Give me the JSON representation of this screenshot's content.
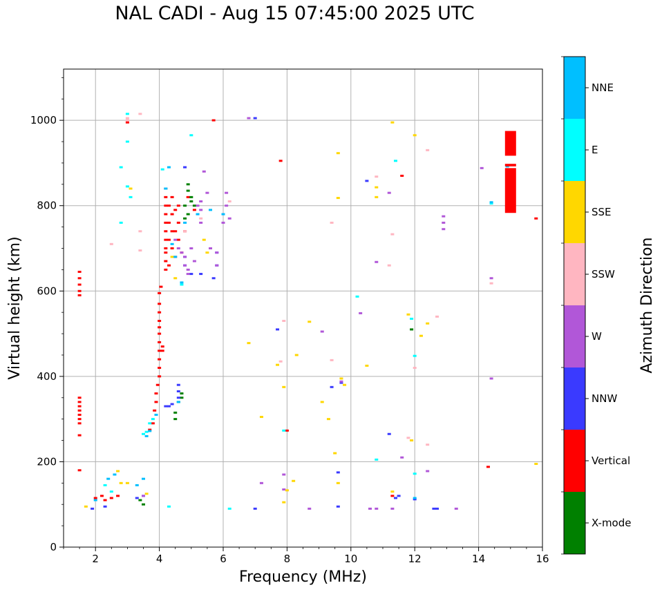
{
  "chart_data": {
    "type": "scatter",
    "title": "NAL CADI - Aug 15 07:45:00 2025 UTC",
    "xlabel": "Frequency (MHz)",
    "ylabel": "Virtual height (km)",
    "xlim": [
      1,
      16
    ],
    "ylim": [
      0,
      1120
    ],
    "xticks": [
      2,
      4,
      6,
      8,
      10,
      12,
      14,
      16
    ],
    "yticks": [
      0,
      200,
      400,
      600,
      800,
      1000
    ],
    "grid": true,
    "colorbar": {
      "label": "Azimuth Direction",
      "categories": [
        {
          "name": "X-mode",
          "color": "#008000"
        },
        {
          "name": "Vertical",
          "color": "#ff0000"
        },
        {
          "name": "NNW",
          "color": "#3a3aff"
        },
        {
          "name": "W",
          "color": "#b157d8"
        },
        {
          "name": "SSW",
          "color": "#ffb6c1"
        },
        {
          "name": "SSE",
          "color": "#ffd700"
        },
        {
          "name": "E",
          "color": "#00ffff"
        },
        {
          "name": "NNE",
          "color": "#00bfff"
        }
      ]
    },
    "series": [
      {
        "name": "Vertical",
        "points": [
          [
            1.5,
            645
          ],
          [
            1.5,
            630
          ],
          [
            1.5,
            615
          ],
          [
            1.5,
            600
          ],
          [
            1.5,
            590
          ],
          [
            1.5,
            350
          ],
          [
            1.5,
            340
          ],
          [
            1.5,
            330
          ],
          [
            1.5,
            320
          ],
          [
            1.5,
            310
          ],
          [
            1.5,
            300
          ],
          [
            1.5,
            290
          ],
          [
            1.5,
            262
          ],
          [
            1.5,
            180
          ],
          [
            2.0,
            115
          ],
          [
            2.2,
            120
          ],
          [
            2.3,
            110
          ],
          [
            2.5,
            115
          ],
          [
            2.7,
            120
          ],
          [
            3.0,
            995
          ],
          [
            3.7,
            275
          ],
          [
            3.8,
            290
          ],
          [
            3.85,
            320
          ],
          [
            3.9,
            340
          ],
          [
            3.9,
            360
          ],
          [
            3.95,
            380
          ],
          [
            4.0,
            400
          ],
          [
            4.0,
            420
          ],
          [
            4.0,
            440
          ],
          [
            4.0,
            460
          ],
          [
            4.0,
            480
          ],
          [
            4.0,
            500
          ],
          [
            4.0,
            515
          ],
          [
            4.0,
            530
          ],
          [
            4.0,
            550
          ],
          [
            4.0,
            570
          ],
          [
            4.0,
            595
          ],
          [
            4.05,
            610
          ],
          [
            4.1,
            470
          ],
          [
            4.1,
            460
          ],
          [
            4.2,
            650
          ],
          [
            4.2,
            670
          ],
          [
            4.2,
            690
          ],
          [
            4.2,
            700
          ],
          [
            4.2,
            720
          ],
          [
            4.2,
            740
          ],
          [
            4.2,
            760
          ],
          [
            4.2,
            780
          ],
          [
            4.2,
            800
          ],
          [
            4.2,
            820
          ],
          [
            4.2,
            840
          ],
          [
            4.3,
            660
          ],
          [
            4.3,
            720
          ],
          [
            4.3,
            760
          ],
          [
            4.3,
            800
          ],
          [
            4.4,
            700
          ],
          [
            4.4,
            740
          ],
          [
            4.4,
            780
          ],
          [
            4.4,
            820
          ],
          [
            4.5,
            680
          ],
          [
            4.5,
            740
          ],
          [
            4.5,
            790
          ],
          [
            4.6,
            720
          ],
          [
            4.6,
            760
          ],
          [
            4.6,
            800
          ],
          [
            4.7,
            690
          ],
          [
            4.8,
            740
          ],
          [
            4.9,
            820
          ],
          [
            5.1,
            790
          ],
          [
            5.7,
            1000
          ],
          [
            7.8,
            905
          ],
          [
            8.0,
            273
          ],
          [
            11.6,
            870
          ],
          [
            11.3,
            120
          ],
          [
            14.3,
            188
          ],
          [
            15.8,
            770
          ]
        ]
      },
      {
        "name": "X-mode",
        "points": [
          [
            3.4,
            110
          ],
          [
            3.5,
            100
          ],
          [
            4.5,
            300
          ],
          [
            4.5,
            315
          ],
          [
            4.6,
            340
          ],
          [
            4.7,
            350
          ],
          [
            4.7,
            360
          ],
          [
            4.8,
            770
          ],
          [
            4.8,
            800
          ],
          [
            4.9,
            850
          ],
          [
            4.9,
            835
          ],
          [
            4.9,
            780
          ],
          [
            5.0,
            820
          ],
          [
            5.0,
            810
          ],
          [
            5.1,
            800
          ],
          [
            11.9,
            510
          ]
        ]
      },
      {
        "name": "NNW",
        "points": [
          [
            1.9,
            90
          ],
          [
            2.3,
            95
          ],
          [
            3.3,
            115
          ],
          [
            3.5,
            120
          ],
          [
            4.2,
            330
          ],
          [
            4.3,
            330
          ],
          [
            4.4,
            335
          ],
          [
            4.6,
            350
          ],
          [
            4.6,
            380
          ],
          [
            4.6,
            365
          ],
          [
            4.8,
            890
          ],
          [
            4.8,
            680
          ],
          [
            4.8,
            660
          ],
          [
            5.0,
            640
          ],
          [
            5.3,
            640
          ],
          [
            5.7,
            630
          ],
          [
            5.8,
            690
          ],
          [
            5.8,
            660
          ],
          [
            7.0,
            90
          ],
          [
            7.0,
            1005
          ],
          [
            7.7,
            510
          ],
          [
            9.4,
            375
          ],
          [
            9.6,
            95
          ],
          [
            9.6,
            175
          ],
          [
            9.7,
            385
          ],
          [
            10.5,
            858
          ],
          [
            11.2,
            265
          ],
          [
            11.4,
            115
          ],
          [
            11.5,
            120
          ],
          [
            12.0,
            112
          ],
          [
            12.6,
            90
          ],
          [
            12.7,
            90
          ]
        ]
      },
      {
        "name": "W",
        "points": [
          [
            3.5,
            120
          ],
          [
            4.5,
            720
          ],
          [
            4.6,
            700
          ],
          [
            4.7,
            690
          ],
          [
            4.8,
            680
          ],
          [
            4.8,
            660
          ],
          [
            4.9,
            650
          ],
          [
            4.9,
            640
          ],
          [
            5.0,
            700
          ],
          [
            5.1,
            670
          ],
          [
            5.2,
            800
          ],
          [
            5.2,
            780
          ],
          [
            5.3,
            790
          ],
          [
            5.3,
            810
          ],
          [
            5.3,
            760
          ],
          [
            5.4,
            880
          ],
          [
            5.5,
            830
          ],
          [
            5.6,
            700
          ],
          [
            5.8,
            660
          ],
          [
            5.8,
            690
          ],
          [
            6.0,
            780
          ],
          [
            6.0,
            760
          ],
          [
            6.1,
            800
          ],
          [
            6.1,
            830
          ],
          [
            6.2,
            770
          ],
          [
            6.8,
            1005
          ],
          [
            7.2,
            150
          ],
          [
            7.9,
            135
          ],
          [
            7.9,
            170
          ],
          [
            8.7,
            90
          ],
          [
            9.1,
            505
          ],
          [
            9.7,
            388
          ],
          [
            10.3,
            548
          ],
          [
            10.6,
            90
          ],
          [
            10.8,
            90
          ],
          [
            10.8,
            668
          ],
          [
            11.2,
            830
          ],
          [
            11.3,
            90
          ],
          [
            11.6,
            210
          ],
          [
            12.4,
            178
          ],
          [
            12.9,
            760
          ],
          [
            12.9,
            745
          ],
          [
            12.9,
            775
          ],
          [
            13.3,
            90
          ],
          [
            14.1,
            888
          ],
          [
            14.4,
            630
          ],
          [
            14.4,
            395
          ]
        ]
      },
      {
        "name": "SSW",
        "points": [
          [
            2.5,
            710
          ],
          [
            3.0,
            1005
          ],
          [
            3.0,
            1000
          ],
          [
            3.4,
            740
          ],
          [
            3.4,
            1015
          ],
          [
            3.4,
            695
          ],
          [
            4.8,
            740
          ],
          [
            5.3,
            770
          ],
          [
            6.2,
            810
          ],
          [
            7.8,
            435
          ],
          [
            7.9,
            530
          ],
          [
            9.4,
            760
          ],
          [
            9.4,
            438
          ],
          [
            10.8,
            868
          ],
          [
            11.2,
            660
          ],
          [
            11.3,
            733
          ],
          [
            11.8,
            256
          ],
          [
            12.0,
            420
          ],
          [
            12.4,
            930
          ],
          [
            12.4,
            240
          ],
          [
            12.7,
            540
          ],
          [
            14.4,
            618
          ]
        ]
      },
      {
        "name": "SSE",
        "points": [
          [
            1.7,
            95
          ],
          [
            2.7,
            178
          ],
          [
            2.8,
            150
          ],
          [
            3.0,
            150
          ],
          [
            3.1,
            840
          ],
          [
            3.6,
            125
          ],
          [
            4.4,
            680
          ],
          [
            4.5,
            630
          ],
          [
            5.4,
            720
          ],
          [
            5.5,
            690
          ],
          [
            6.8,
            478
          ],
          [
            7.2,
            305
          ],
          [
            7.7,
            427
          ],
          [
            7.9,
            375
          ],
          [
            7.9,
            105
          ],
          [
            8.0,
            133
          ],
          [
            8.2,
            155
          ],
          [
            8.3,
            450
          ],
          [
            8.7,
            528
          ],
          [
            9.1,
            340
          ],
          [
            9.3,
            300
          ],
          [
            9.5,
            220
          ],
          [
            9.6,
            150
          ],
          [
            9.6,
            923
          ],
          [
            9.6,
            818
          ],
          [
            9.7,
            395
          ],
          [
            9.8,
            380
          ],
          [
            10.5,
            425
          ],
          [
            10.8,
            843
          ],
          [
            10.8,
            820
          ],
          [
            11.3,
            995
          ],
          [
            11.3,
            130
          ],
          [
            11.8,
            545
          ],
          [
            11.9,
            250
          ],
          [
            12.0,
            965
          ],
          [
            12.2,
            495
          ],
          [
            12.4,
            524
          ],
          [
            15.8,
            195
          ]
        ]
      },
      {
        "name": "E",
        "points": [
          [
            2.3,
            145
          ],
          [
            2.5,
            130
          ],
          [
            3.0,
            1015
          ],
          [
            3.0,
            950
          ],
          [
            3.0,
            845
          ],
          [
            2.8,
            760
          ],
          [
            2.8,
            890
          ],
          [
            3.1,
            820
          ],
          [
            3.5,
            265
          ],
          [
            3.6,
            270
          ],
          [
            3.7,
            290
          ],
          [
            3.8,
            300
          ],
          [
            4.1,
            885
          ],
          [
            4.3,
            95
          ],
          [
            4.7,
            615
          ],
          [
            5.0,
            965
          ],
          [
            6.2,
            90
          ],
          [
            7.9,
            273
          ],
          [
            10.2,
            587
          ],
          [
            10.8,
            205
          ],
          [
            11.4,
            905
          ],
          [
            11.9,
            535
          ],
          [
            12.0,
            448
          ],
          [
            12.0,
            172
          ],
          [
            14.4,
            805
          ]
        ]
      },
      {
        "name": "NNE",
        "points": [
          [
            2.0,
            110
          ],
          [
            2.4,
            160
          ],
          [
            2.6,
            170
          ],
          [
            3.3,
            145
          ],
          [
            3.5,
            160
          ],
          [
            3.6,
            260
          ],
          [
            3.7,
            272
          ],
          [
            3.9,
            310
          ],
          [
            4.2,
            840
          ],
          [
            4.3,
            890
          ],
          [
            4.4,
            710
          ],
          [
            4.5,
            680
          ],
          [
            4.6,
            340
          ],
          [
            4.7,
            620
          ],
          [
            4.8,
            760
          ],
          [
            5.2,
            780
          ],
          [
            5.6,
            790
          ],
          [
            6.0,
            780
          ],
          [
            12.0,
            115
          ],
          [
            14.4,
            808
          ],
          [
            14.9,
            892
          ]
        ]
      }
    ],
    "bars": [
      {
        "series": "Vertical",
        "x": 15.0,
        "y0": 917,
        "y1": 975
      },
      {
        "series": "Vertical",
        "x": 15.0,
        "y0": 783,
        "y1": 888
      },
      {
        "series": "Vertical",
        "x": 15.0,
        "y0": 892,
        "y1": 898
      }
    ]
  }
}
